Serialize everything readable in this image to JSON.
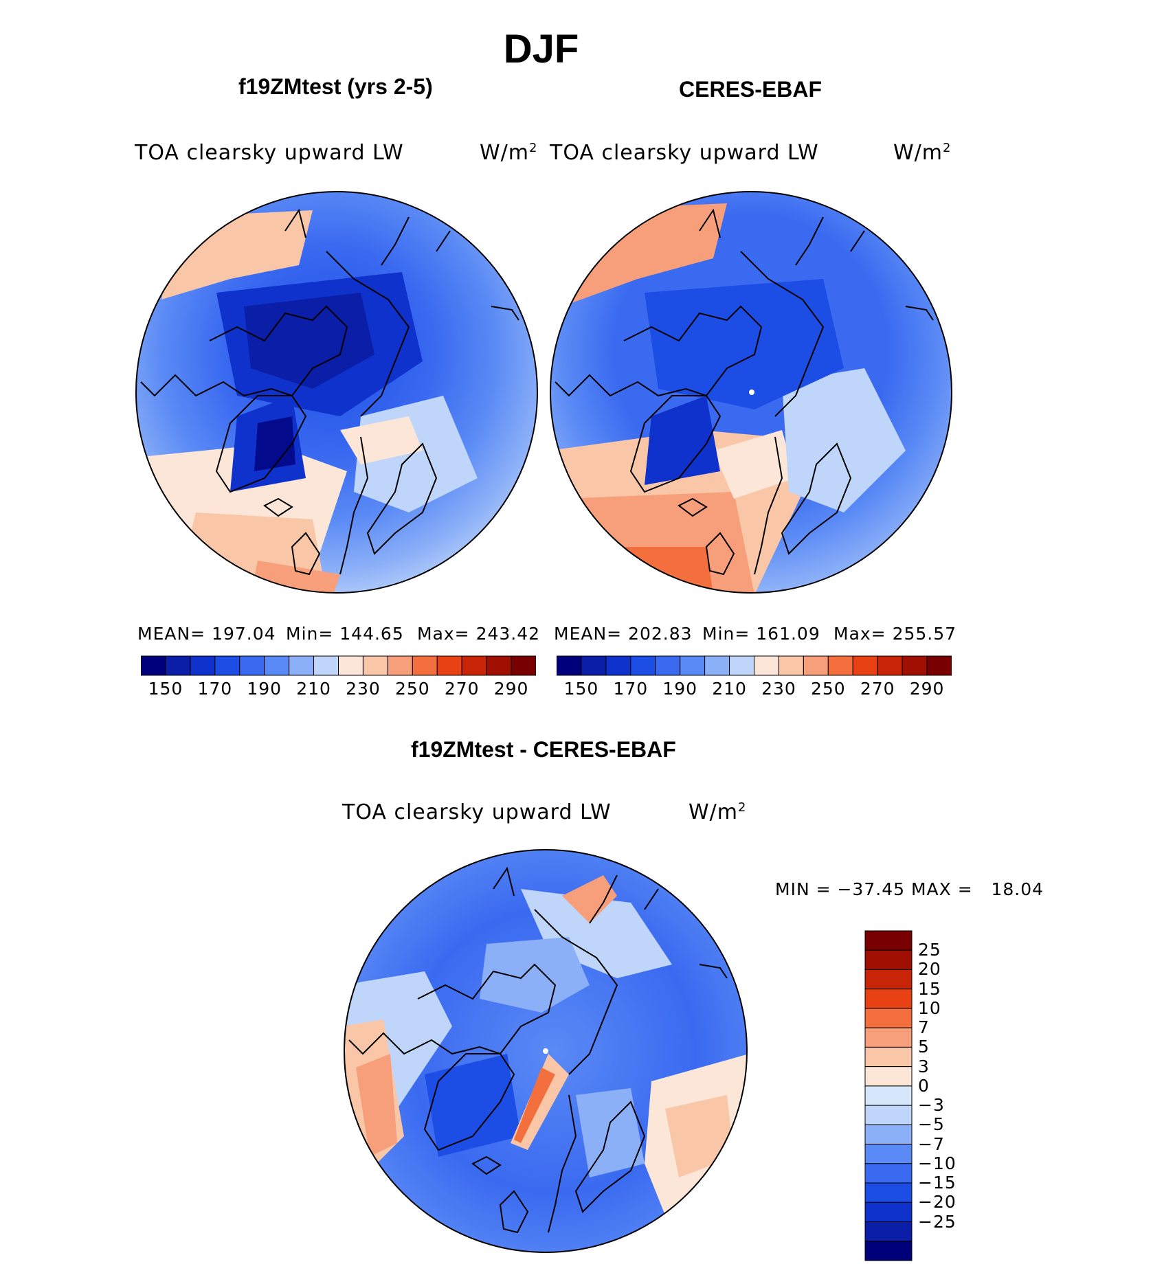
{
  "figure_title": "DJF",
  "panels": [
    {
      "case_title": "f19ZMtest (yrs 2-5)",
      "variable": "TOA clearsky upward LW",
      "units": "W/m",
      "units_sup": "2",
      "stats": {
        "mean": "MEAN= 197.04",
        "min": "Min= 144.65",
        "max": "Max= 243.42"
      }
    },
    {
      "case_title": "CERES-EBAF",
      "variable": "TOA clearsky upward LW",
      "units": "W/m",
      "units_sup": "2",
      "stats": {
        "mean": "MEAN= 202.83",
        "min": "Min= 161.09",
        "max": "Max= 255.57"
      }
    }
  ],
  "field_colorbar": {
    "colors": [
      "#00007a",
      "#0a1ea8",
      "#1032cc",
      "#1c4ee6",
      "#3a6af0",
      "#5a8af5",
      "#8cb0f8",
      "#bfd6fa",
      "#fbe6d8",
      "#f9c6a8",
      "#f79f7a",
      "#f36f3e",
      "#e84114",
      "#c82508",
      "#a01002",
      "#780000"
    ],
    "tick_labels": [
      "150",
      "170",
      "190",
      "210",
      "230",
      "250",
      "270",
      "290"
    ]
  },
  "difference": {
    "title": "f19ZMtest - CERES-EBAF",
    "variable": "TOA clearsky upward LW",
    "units": "W/m",
    "units_sup": "2",
    "minmax": "MIN = −37.45 MAX =   18.04",
    "colorbar": {
      "colors": [
        "#780000",
        "#a01002",
        "#c82508",
        "#e84114",
        "#f36f3e",
        "#f79f7a",
        "#f9c6a8",
        "#fbe6d8",
        "#d6e6fb",
        "#bfd6fa",
        "#8cb0f8",
        "#5a8af5",
        "#3a6af0",
        "#1c4ee6",
        "#1032cc",
        "#0a1ea8",
        "#00007a"
      ],
      "tick_labels": [
        "25",
        "20",
        "15",
        "10",
        "7",
        "5",
        "3",
        "0",
        "−3",
        "−5",
        "−7",
        "−10",
        "−15",
        "−20",
        "−25"
      ]
    }
  }
}
